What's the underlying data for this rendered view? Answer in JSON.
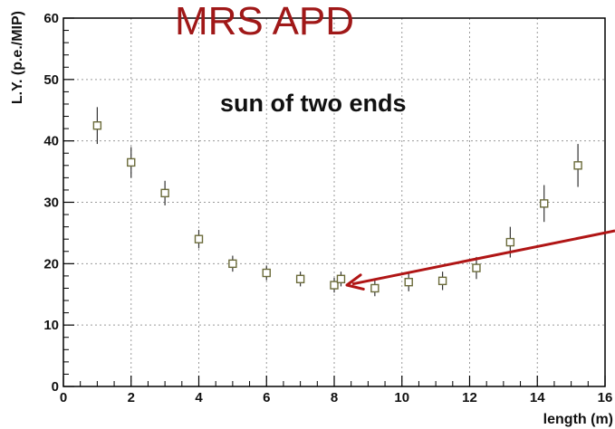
{
  "chart_data": {
    "type": "scatter",
    "title": "MRS APD",
    "annotation": "sun of two ends",
    "xlabel": "length (m)",
    "ylabel": "L.Y. (p.e./MIP)",
    "xlim": [
      0,
      16
    ],
    "ylim": [
      0,
      60
    ],
    "xticks": [
      0,
      2,
      4,
      6,
      8,
      10,
      12,
      14,
      16
    ],
    "yticks": [
      0,
      10,
      20,
      30,
      40,
      50,
      60
    ],
    "grid": true,
    "marker": "open-square",
    "marker_color": "#6b6b3a",
    "title_color": "#a01818",
    "arrow_color": "#b01515",
    "points": [
      {
        "x": 1.0,
        "y": 42.5,
        "err": 3.0
      },
      {
        "x": 2.0,
        "y": 36.5,
        "err": 2.5
      },
      {
        "x": 3.0,
        "y": 31.5,
        "err": 2.0
      },
      {
        "x": 4.0,
        "y": 24.0,
        "err": 1.5
      },
      {
        "x": 5.0,
        "y": 20.0,
        "err": 1.3
      },
      {
        "x": 6.0,
        "y": 18.5,
        "err": 1.2
      },
      {
        "x": 7.0,
        "y": 17.5,
        "err": 1.2
      },
      {
        "x": 8.0,
        "y": 16.5,
        "err": 1.2
      },
      {
        "x": 8.2,
        "y": 17.5,
        "err": 1.2
      },
      {
        "x": 9.2,
        "y": 16.0,
        "err": 1.3
      },
      {
        "x": 10.2,
        "y": 17.0,
        "err": 1.5
      },
      {
        "x": 11.2,
        "y": 17.2,
        "err": 1.5
      },
      {
        "x": 12.2,
        "y": 19.3,
        "err": 1.8
      },
      {
        "x": 13.2,
        "y": 23.5,
        "err": 2.5
      },
      {
        "x": 14.2,
        "y": 29.8,
        "err": 3.0
      },
      {
        "x": 15.2,
        "y": 36.0,
        "err": 3.5
      }
    ]
  }
}
